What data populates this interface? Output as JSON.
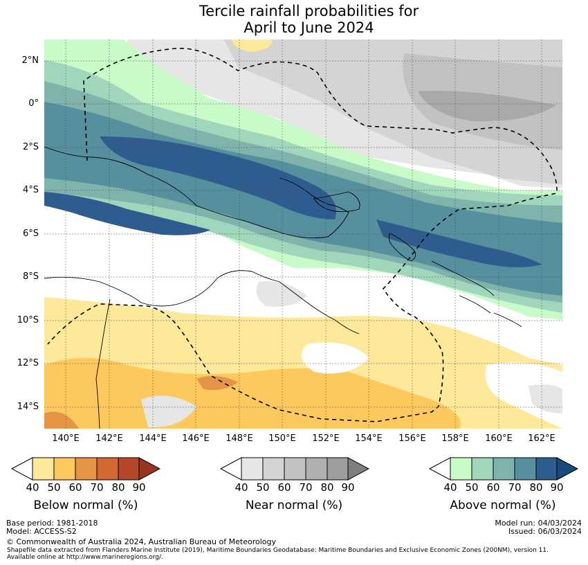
{
  "title": {
    "line1": "Tercile rainfall probabilities for",
    "line2": "April to June 2024"
  },
  "axes": {
    "y_labels": [
      "2°N",
      "0°",
      "2°S",
      "4°S",
      "6°S",
      "8°S",
      "10°S",
      "12°S",
      "14°S"
    ],
    "x_labels": [
      "140°E",
      "142°E",
      "144°E",
      "146°E",
      "148°E",
      "150°E",
      "152°E",
      "154°E",
      "156°E",
      "158°E",
      "160°E",
      "162°E"
    ]
  },
  "colorbars": {
    "below": {
      "label": "Below normal (%)",
      "ticks": [
        "40",
        "50",
        "60",
        "70",
        "80",
        "90"
      ],
      "colors": [
        "#fee99a",
        "#fdc95f",
        "#e59545",
        "#d46832",
        "#b5482a",
        "#9a3420"
      ]
    },
    "near": {
      "label": "Near normal (%)",
      "ticks": [
        "40",
        "50",
        "60",
        "70",
        "80",
        "90"
      ],
      "colors": [
        "#e6e6e6",
        "#d4d4d4",
        "#c2c2c2",
        "#b0b0b0",
        "#9e9e9e",
        "#7f7f7f"
      ]
    },
    "above": {
      "label": "Above normal (%)",
      "ticks": [
        "40",
        "50",
        "60",
        "70",
        "80",
        "90"
      ],
      "colors": [
        "#c9fbc8",
        "#a0d6bb",
        "#7fb4ac",
        "#568f9e",
        "#2f5c8e",
        "#184a80"
      ]
    }
  },
  "footer": {
    "base_period": "Base period: 1981-2018",
    "model": "Model: ACCESS-S2",
    "model_run": "Model run: 04/03/2024",
    "issued": "Issued: 06/03/2024",
    "copyright": "© Commonwealth of Australia 2024, Australian Bureau of Meteorology",
    "shapefile_note_1": "Shapefile data extracted from Flanders Marine Institute (2019), Maritime Boundaries Geodatabase: Maritime Boundaries and Exclusive Economic Zones (200NM), version 11.",
    "shapefile_note_2": "Available online at http://www.marineregions.org/."
  }
}
